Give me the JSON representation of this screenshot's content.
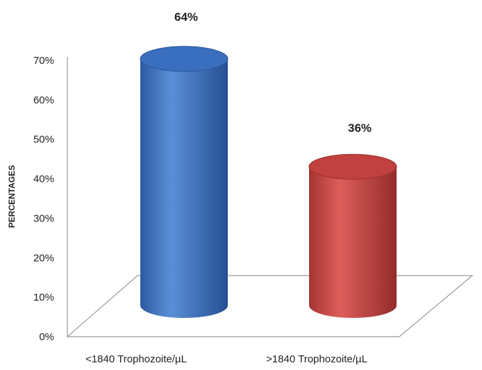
{
  "chart_data": {
    "type": "bar",
    "style": "3d-cylinder",
    "categories": [
      "<1840 Trophozoite/µL",
      ">1840 Trophozoite/µL"
    ],
    "values": [
      64,
      36
    ],
    "data_labels": [
      "64%",
      "36%"
    ],
    "ylabel": "PERCENTAGES",
    "ylim": [
      0,
      70
    ],
    "yticks": [
      "0%",
      "10%",
      "20%",
      "30%",
      "40%",
      "50%",
      "60%",
      "70%"
    ],
    "grid": false,
    "colors": [
      "#3a6fbf",
      "#c0413f"
    ]
  }
}
